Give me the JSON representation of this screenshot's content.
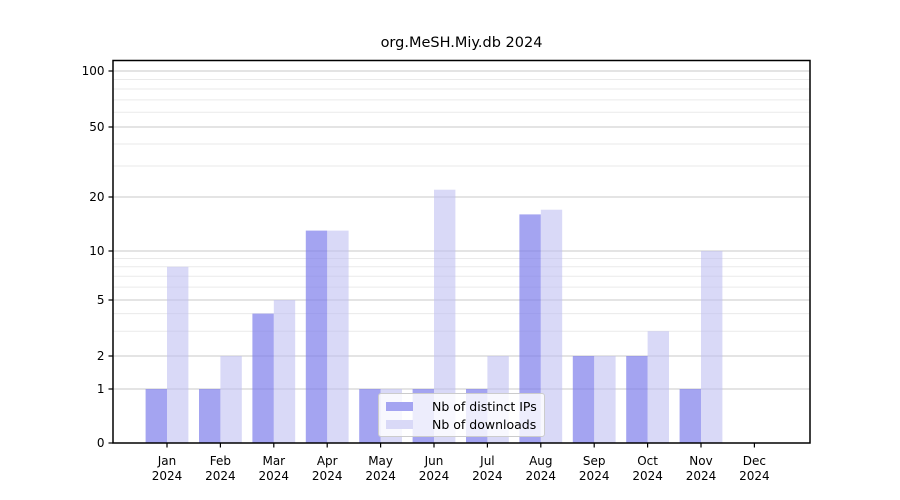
{
  "title": "org.MeSH.Miy.db 2024",
  "chart_data": {
    "type": "bar",
    "title": "org.MeSH.Miy.db 2024",
    "categories": [
      "Jan",
      "Feb",
      "Mar",
      "Apr",
      "May",
      "Jun",
      "Jul",
      "Aug",
      "Sep",
      "Oct",
      "Nov",
      "Dec"
    ],
    "year_label": "2024",
    "series": [
      {
        "name": "Nb of distinct IPs",
        "key": "ips",
        "color": "rgba(125,125,235,0.70)",
        "legend_color": "#a4a4f1",
        "values": [
          1,
          1,
          4,
          13,
          1,
          1,
          1,
          16,
          2,
          2,
          1,
          0
        ]
      },
      {
        "name": "Nb of downloads",
        "key": "downloads",
        "color": "rgba(190,190,242,0.58)",
        "legend_color": "#d9d9f7",
        "values": [
          8,
          2,
          5,
          13,
          1,
          22,
          2,
          17,
          2,
          3,
          10,
          0
        ]
      }
    ],
    "y_scale": "log-like with 0 baseline",
    "y_ticks": [
      0,
      1,
      2,
      5,
      10,
      20,
      50,
      100
    ],
    "y_minor_ticks": [
      3,
      4,
      6,
      7,
      8,
      9,
      30,
      40,
      60,
      70,
      80,
      90
    ],
    "ylim": [
      0,
      115
    ],
    "xlabel": "",
    "ylabel": "",
    "grid": true,
    "legend_position": "lower-center"
  },
  "colors": {
    "background": "#ffffff",
    "spine": "#000000",
    "grid_major": "#c8c8c8",
    "grid_minor": "#eaeaea",
    "text": "#000000"
  }
}
